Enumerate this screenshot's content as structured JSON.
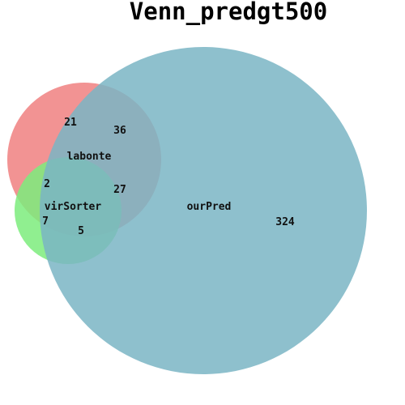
{
  "title": "Venn_predgt500",
  "sets": {
    "labonte": {
      "label": "labonte",
      "color": "#f08080",
      "opacity": 0.85
    },
    "virSorter": {
      "label": "virSorter",
      "color": "#7cec7c",
      "opacity": 0.85
    },
    "ourPred": {
      "label": "ourPred",
      "color": "#7ab5c4",
      "opacity": 0.85
    }
  },
  "regions": {
    "labonte_only": "21",
    "labonte_ourPred": "36",
    "labonte_virSorter": "2",
    "all_three": "27",
    "virSorter_only": "7",
    "virSorter_ourPred": "5",
    "ourPred_only": "324"
  }
}
